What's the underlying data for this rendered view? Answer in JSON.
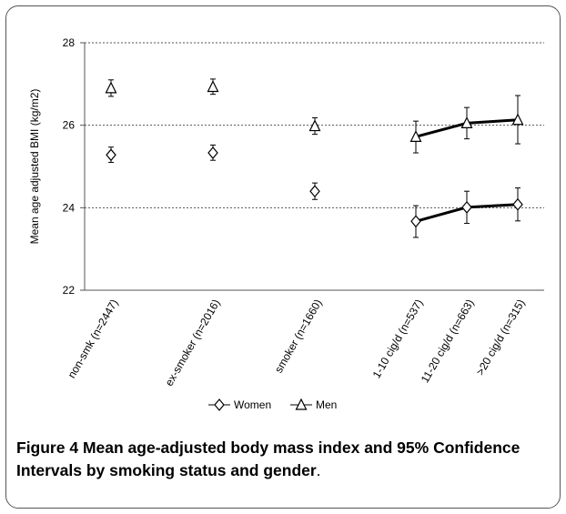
{
  "chart_data": {
    "type": "scatter",
    "categories": [
      "non-smk (n=2447)",
      "ex-smoker (n=2016)",
      "smoker (n=1660)",
      "1-10 cig/d (n=537)",
      "11-20 cig/d (n=663)",
      ">20 cig/d (n=315)"
    ],
    "ylabel": "Mean age adjusted BMI (kg/m2)",
    "ylim": [
      22,
      28
    ],
    "yticks": [
      "22",
      "24",
      "26",
      "28"
    ],
    "gridlines": "dotted horizontal at each y tick",
    "legend_position": "bottom-center",
    "series": [
      {
        "name": "Women",
        "marker": "diamond",
        "values": [
          25.28,
          25.33,
          24.4,
          23.67,
          24.01,
          24.08
        ],
        "ci_lower": [
          25.1,
          25.15,
          24.2,
          23.28,
          23.62,
          23.68
        ],
        "ci_upper": [
          25.47,
          25.52,
          24.6,
          24.05,
          24.4,
          24.48
        ],
        "connected_categories": [
          3,
          4,
          5
        ]
      },
      {
        "name": "Men",
        "marker": "triangle",
        "values": [
          26.9,
          26.93,
          25.98,
          25.72,
          26.05,
          26.13
        ],
        "ci_lower": [
          26.7,
          26.75,
          25.78,
          25.33,
          25.67,
          25.55
        ],
        "ci_upper": [
          27.1,
          27.12,
          26.18,
          26.1,
          26.43,
          26.72
        ],
        "connected_categories": [
          3,
          4,
          5
        ]
      }
    ]
  },
  "caption": {
    "figure_label": "Figure 4",
    "title": "Mean age-adjusted body mass index and 95% Confidence Intervals by smoking status and gender",
    "end": "."
  }
}
